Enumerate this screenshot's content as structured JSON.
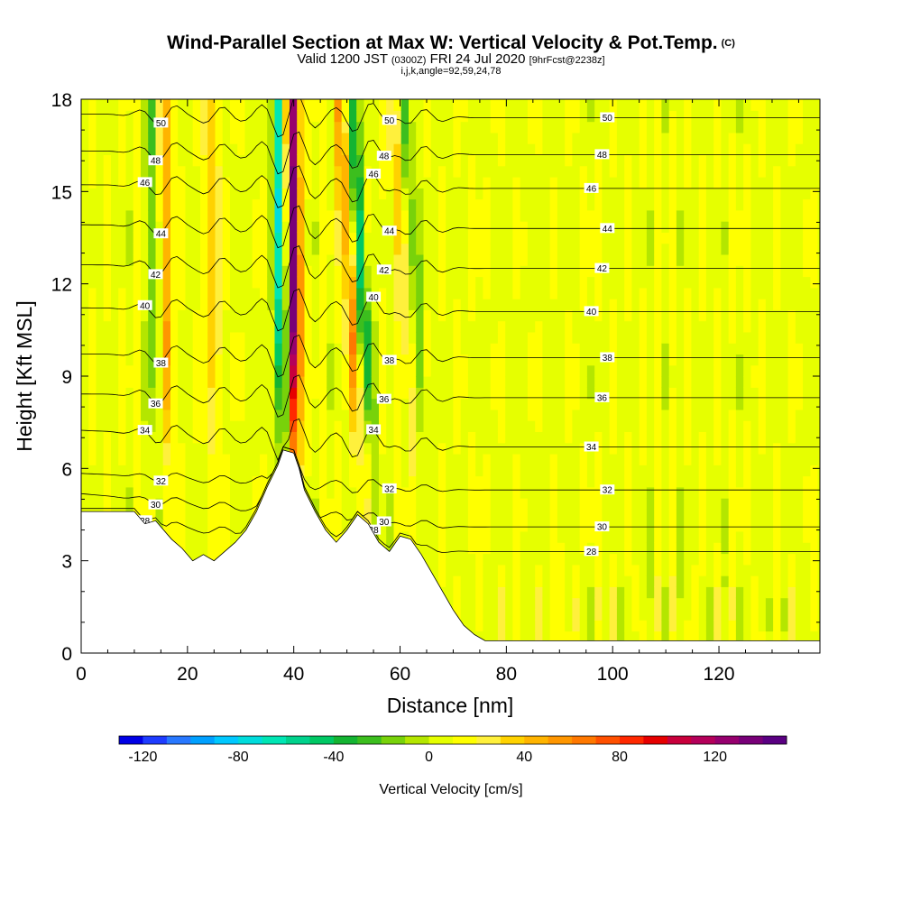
{
  "title": {
    "main": "Wind-Parallel Section at Max W: Vertical Velocity & Pot.Temp.",
    "copyright": "(C)",
    "valid_prefix": "Valid 1200 JST",
    "valid_utc": "(0300Z)",
    "valid_date": "FRI 24 Jul 2020",
    "forecast": "[9hrFcst@2238z]",
    "params": "i,j,k,angle=92,59,24,78"
  },
  "chart_data": {
    "type": "heatmap",
    "xlabel": "Distance [nm]",
    "ylabel": "Height [Kft MSL]",
    "xlim": [
      0,
      139
    ],
    "ylim": [
      0,
      18
    ],
    "x_ticks": [
      "0",
      "20",
      "40",
      "60",
      "80",
      "100",
      "120"
    ],
    "x_tick_values": [
      0,
      20,
      40,
      60,
      80,
      100,
      120
    ],
    "y_ticks": [
      "0",
      "3",
      "6",
      "9",
      "12",
      "15",
      "18"
    ],
    "y_tick_values": [
      0,
      3,
      6,
      9,
      12,
      15,
      18
    ],
    "field": "Vertical Velocity",
    "colorbar": {
      "title": "Vertical Velocity [cm/s]",
      "tick_labels": [
        "-120",
        "-80",
        "-40",
        "0",
        "40",
        "80",
        "120"
      ],
      "tick_values": [
        -120,
        -80,
        -40,
        0,
        40,
        80,
        120
      ],
      "range": [
        -130,
        150
      ],
      "colors": [
        "#0000e6",
        "#1e3cff",
        "#2878ff",
        "#00a0ff",
        "#00c8ff",
        "#00dcdc",
        "#00e6b4",
        "#00d28c",
        "#00c864",
        "#14b432",
        "#3cbe1e",
        "#78d20a",
        "#b4e600",
        "#e6ff00",
        "#ffff00",
        "#fff03c",
        "#ffd200",
        "#ffb400",
        "#ff9600",
        "#ff7800",
        "#ff5000",
        "#ff2800",
        "#e60000",
        "#c8003c",
        "#b4005a",
        "#96006e",
        "#780078",
        "#5a0082"
      ]
    },
    "updraft_bands": [
      {
        "center_x": 16,
        "peak_w": 40
      },
      {
        "center_x": 25,
        "peak_w": 30
      },
      {
        "center_x": 40,
        "peak_w": 130
      },
      {
        "center_x": 52,
        "peak_w": 50
      },
      {
        "center_x": 62,
        "peak_w": 25
      }
    ],
    "downdraft_bands": [
      {
        "center_x": 14,
        "peak_w": -35
      },
      {
        "center_x": 38,
        "peak_w": -100
      },
      {
        "center_x": 54,
        "peak_w": -60
      },
      {
        "center_x": 64,
        "peak_w": -30
      }
    ],
    "theta_contours": [
      {
        "label": "28",
        "level": 3.3
      },
      {
        "label": "30",
        "level": 4.1
      },
      {
        "label": "32",
        "level": 5.3
      },
      {
        "label": "34",
        "level": 6.7
      },
      {
        "label": "36",
        "level": 8.3
      },
      {
        "label": "38",
        "level": 9.6
      },
      {
        "label": "40",
        "level": 11.1
      },
      {
        "label": "42",
        "level": 12.5
      },
      {
        "label": "44",
        "level": 13.8
      },
      {
        "label": "46",
        "level": 15.1
      },
      {
        "label": "48",
        "level": 16.2
      },
      {
        "label": "50",
        "level": 17.4
      }
    ],
    "terrain_profile": [
      [
        0,
        4.6
      ],
      [
        10,
        4.6
      ],
      [
        12,
        4.2
      ],
      [
        14,
        4.3
      ],
      [
        17,
        3.7
      ],
      [
        19,
        3.4
      ],
      [
        21,
        3.0
      ],
      [
        23,
        3.2
      ],
      [
        25,
        3.0
      ],
      [
        27,
        3.3
      ],
      [
        29,
        3.6
      ],
      [
        31,
        4.0
      ],
      [
        33,
        4.6
      ],
      [
        35,
        5.4
      ],
      [
        37,
        6.1
      ],
      [
        38,
        6.6
      ],
      [
        40,
        6.5
      ],
      [
        41,
        6.0
      ],
      [
        42,
        5.3
      ],
      [
        44,
        4.6
      ],
      [
        46,
        4.0
      ],
      [
        48,
        3.6
      ],
      [
        50,
        4.0
      ],
      [
        52,
        4.5
      ],
      [
        54,
        4.2
      ],
      [
        56,
        3.6
      ],
      [
        58,
        3.3
      ],
      [
        60,
        3.8
      ],
      [
        62,
        3.7
      ],
      [
        64,
        3.2
      ],
      [
        66,
        2.6
      ],
      [
        68,
        2.0
      ],
      [
        70,
        1.4
      ],
      [
        72,
        0.9
      ],
      [
        74,
        0.6
      ],
      [
        76,
        0.4
      ],
      [
        139,
        0.4
      ]
    ]
  }
}
